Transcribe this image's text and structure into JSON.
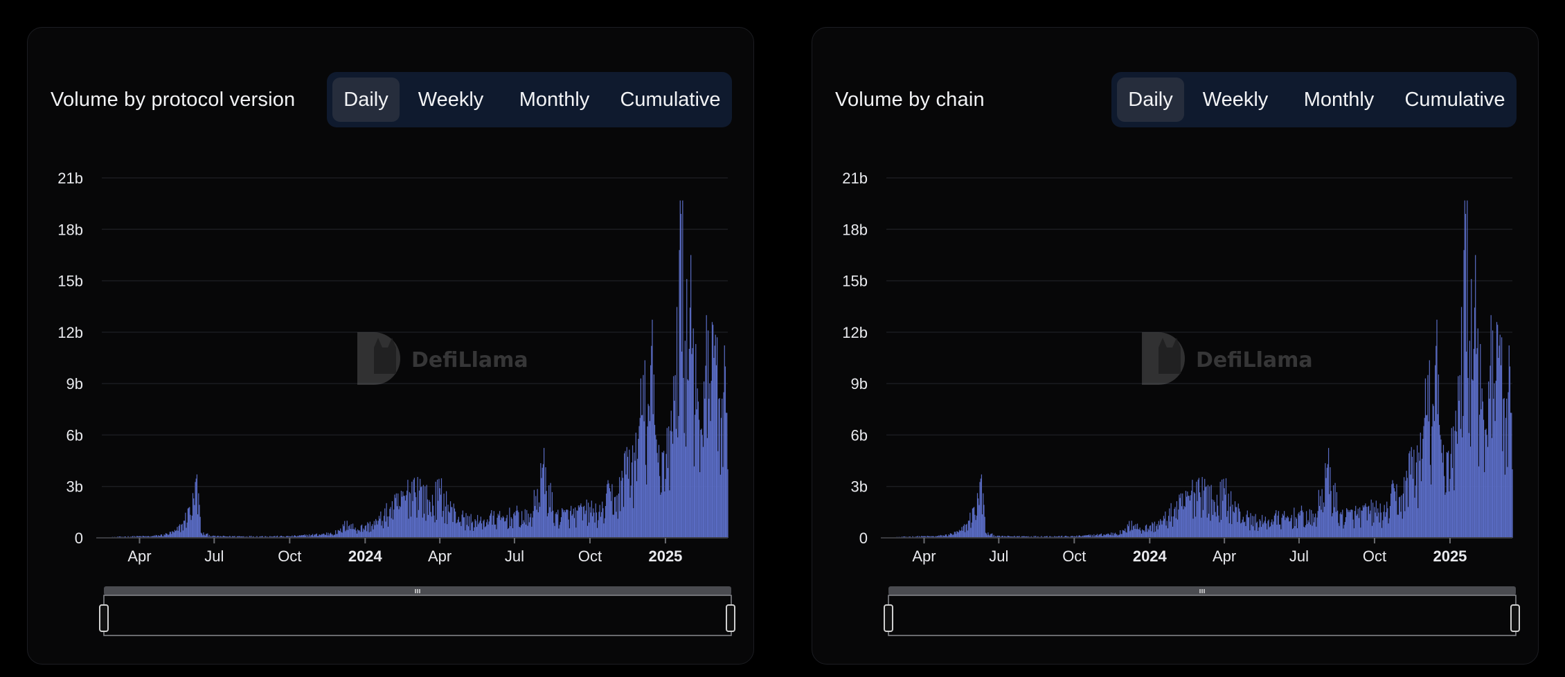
{
  "colors": {
    "background": "#000000",
    "panel": "#070708",
    "bars": "#5a6cc4",
    "toggle_bg": "#0f1a2e",
    "toggle_active": "#262d3c",
    "gridline": "#1b1c20"
  },
  "watermark": {
    "text": "DefiLlama",
    "icon": "llama-logo-icon"
  },
  "panels": [
    {
      "title": "Volume by protocol version",
      "period_buttons": [
        "Daily",
        "Weekly",
        "Monthly",
        "Cumulative"
      ],
      "selected_period": "Daily"
    },
    {
      "title": "Volume by chain",
      "period_buttons": [
        "Daily",
        "Weekly",
        "Monthly",
        "Cumulative"
      ],
      "selected_period": "Daily"
    }
  ],
  "chart_data": [
    {
      "type": "bar",
      "title": "Volume by protocol version",
      "x_range": [
        "2023-02-14",
        "2025-03-18"
      ],
      "ylim": [
        0,
        21
      ],
      "yticks": [
        "0",
        "3b",
        "6b",
        "9b",
        "12b",
        "15b",
        "18b",
        "21b"
      ],
      "ytick_values": [
        0,
        3,
        6,
        9,
        12,
        15,
        18,
        21
      ],
      "xticks": [
        {
          "date": "2023-04-01",
          "label": "Apr",
          "bold": false
        },
        {
          "date": "2023-07-01",
          "label": "Jul",
          "bold": false
        },
        {
          "date": "2023-10-01",
          "label": "Oct",
          "bold": false
        },
        {
          "date": "2024-01-01",
          "label": "2024",
          "bold": true
        },
        {
          "date": "2024-04-01",
          "label": "Apr",
          "bold": false
        },
        {
          "date": "2024-07-01",
          "label": "Jul",
          "bold": false
        },
        {
          "date": "2024-10-01",
          "label": "Oct",
          "bold": false
        },
        {
          "date": "2025-01-01",
          "label": "2025",
          "bold": true
        }
      ],
      "grid": true,
      "legend": "none",
      "series": [
        {
          "value_unit": "b",
          "points": [
            [
              "2023-02-14",
              0.0
            ],
            [
              "2023-03-01",
              0.05
            ],
            [
              "2023-03-15",
              0.08
            ],
            [
              "2023-04-01",
              0.1
            ],
            [
              "2023-04-15",
              0.1
            ],
            [
              "2023-05-01",
              0.2
            ],
            [
              "2023-05-15",
              0.4
            ],
            [
              "2023-05-25",
              1.0
            ],
            [
              "2023-06-01",
              1.8
            ],
            [
              "2023-06-06",
              2.3
            ],
            [
              "2023-06-10",
              3.7
            ],
            [
              "2023-06-12",
              2.6
            ],
            [
              "2023-06-15",
              0.3
            ],
            [
              "2023-07-01",
              0.1
            ],
            [
              "2023-08-01",
              0.1
            ],
            [
              "2023-09-01",
              0.1
            ],
            [
              "2023-10-01",
              0.1
            ],
            [
              "2023-11-01",
              0.2
            ],
            [
              "2023-11-20",
              0.3
            ],
            [
              "2023-12-01",
              0.4
            ],
            [
              "2023-12-10",
              1.0
            ],
            [
              "2023-12-20",
              0.6
            ],
            [
              "2024-01-01",
              0.7
            ],
            [
              "2024-01-15",
              1.0
            ],
            [
              "2024-02-01",
              1.8
            ],
            [
              "2024-02-15",
              2.4
            ],
            [
              "2024-03-01",
              3.5
            ],
            [
              "2024-03-10",
              3.0
            ],
            [
              "2024-03-20",
              2.1
            ],
            [
              "2024-04-01",
              2.9
            ],
            [
              "2024-04-15",
              1.8
            ],
            [
              "2024-05-01",
              1.2
            ],
            [
              "2024-05-20",
              1.0
            ],
            [
              "2024-06-01",
              1.3
            ],
            [
              "2024-06-15",
              1.2
            ],
            [
              "2024-07-01",
              1.5
            ],
            [
              "2024-07-20",
              1.2
            ],
            [
              "2024-08-05",
              4.3
            ],
            [
              "2024-08-20",
              1.4
            ],
            [
              "2024-09-01",
              1.5
            ],
            [
              "2024-09-15",
              1.6
            ],
            [
              "2024-10-01",
              1.8
            ],
            [
              "2024-10-15",
              1.5
            ],
            [
              "2024-10-25",
              2.9
            ],
            [
              "2024-11-01",
              2.4
            ],
            [
              "2024-11-10",
              3.5
            ],
            [
              "2024-11-15",
              5.3
            ],
            [
              "2024-11-25",
              4.5
            ],
            [
              "2024-12-01",
              7.0
            ],
            [
              "2024-12-05",
              9.5
            ],
            [
              "2024-12-10",
              6.5
            ],
            [
              "2024-12-15",
              11.2
            ],
            [
              "2024-12-20",
              6.0
            ],
            [
              "2024-12-28",
              5.0
            ],
            [
              "2025-01-05",
              6.5
            ],
            [
              "2025-01-12",
              8.0
            ],
            [
              "2025-01-20",
              18.9
            ],
            [
              "2025-01-25",
              11.5
            ],
            [
              "2025-02-01",
              16.5
            ],
            [
              "2025-02-08",
              7.5
            ],
            [
              "2025-02-15",
              6.0
            ],
            [
              "2025-02-22",
              12.1
            ],
            [
              "2025-03-01",
              10.5
            ],
            [
              "2025-03-05",
              11.7
            ],
            [
              "2025-03-10",
              7.0
            ],
            [
              "2025-03-15",
              10.0
            ],
            [
              "2025-03-18",
              4.0
            ]
          ]
        }
      ]
    },
    {
      "type": "bar",
      "title": "Volume by chain",
      "x_range": [
        "2023-02-14",
        "2025-03-18"
      ],
      "ylim": [
        0,
        21
      ],
      "yticks": [
        "0",
        "3b",
        "6b",
        "9b",
        "12b",
        "15b",
        "18b",
        "21b"
      ],
      "ytick_values": [
        0,
        3,
        6,
        9,
        12,
        15,
        18,
        21
      ],
      "xticks": [
        {
          "date": "2023-04-01",
          "label": "Apr",
          "bold": false
        },
        {
          "date": "2023-07-01",
          "label": "Jul",
          "bold": false
        },
        {
          "date": "2023-10-01",
          "label": "Oct",
          "bold": false
        },
        {
          "date": "2024-01-01",
          "label": "2024",
          "bold": true
        },
        {
          "date": "2024-04-01",
          "label": "Apr",
          "bold": false
        },
        {
          "date": "2024-07-01",
          "label": "Jul",
          "bold": false
        },
        {
          "date": "2024-10-01",
          "label": "Oct",
          "bold": false
        },
        {
          "date": "2025-01-01",
          "label": "2025",
          "bold": true
        }
      ],
      "grid": true,
      "legend": "none",
      "series": [
        {
          "value_unit": "b",
          "points": [
            [
              "2023-02-14",
              0.0
            ],
            [
              "2023-03-01",
              0.05
            ],
            [
              "2023-03-15",
              0.08
            ],
            [
              "2023-04-01",
              0.1
            ],
            [
              "2023-04-15",
              0.1
            ],
            [
              "2023-05-01",
              0.2
            ],
            [
              "2023-05-15",
              0.4
            ],
            [
              "2023-05-25",
              1.0
            ],
            [
              "2023-06-01",
              1.8
            ],
            [
              "2023-06-06",
              2.3
            ],
            [
              "2023-06-10",
              3.7
            ],
            [
              "2023-06-12",
              2.6
            ],
            [
              "2023-06-15",
              0.3
            ],
            [
              "2023-07-01",
              0.1
            ],
            [
              "2023-08-01",
              0.1
            ],
            [
              "2023-09-01",
              0.1
            ],
            [
              "2023-10-01",
              0.1
            ],
            [
              "2023-11-01",
              0.2
            ],
            [
              "2023-11-20",
              0.3
            ],
            [
              "2023-12-01",
              0.4
            ],
            [
              "2023-12-10",
              1.0
            ],
            [
              "2023-12-20",
              0.6
            ],
            [
              "2024-01-01",
              0.7
            ],
            [
              "2024-01-15",
              1.0
            ],
            [
              "2024-02-01",
              1.8
            ],
            [
              "2024-02-15",
              2.4
            ],
            [
              "2024-03-01",
              3.5
            ],
            [
              "2024-03-10",
              3.0
            ],
            [
              "2024-03-20",
              2.1
            ],
            [
              "2024-04-01",
              2.9
            ],
            [
              "2024-04-15",
              1.8
            ],
            [
              "2024-05-01",
              1.2
            ],
            [
              "2024-05-20",
              1.0
            ],
            [
              "2024-06-01",
              1.3
            ],
            [
              "2024-06-15",
              1.2
            ],
            [
              "2024-07-01",
              1.5
            ],
            [
              "2024-07-20",
              1.2
            ],
            [
              "2024-08-05",
              4.3
            ],
            [
              "2024-08-20",
              1.4
            ],
            [
              "2024-09-01",
              1.5
            ],
            [
              "2024-09-15",
              1.6
            ],
            [
              "2024-10-01",
              1.8
            ],
            [
              "2024-10-15",
              1.5
            ],
            [
              "2024-10-25",
              2.9
            ],
            [
              "2024-11-01",
              2.4
            ],
            [
              "2024-11-10",
              3.5
            ],
            [
              "2024-11-15",
              5.3
            ],
            [
              "2024-11-25",
              4.5
            ],
            [
              "2024-12-01",
              7.0
            ],
            [
              "2024-12-05",
              9.5
            ],
            [
              "2024-12-10",
              6.5
            ],
            [
              "2024-12-15",
              11.2
            ],
            [
              "2024-12-20",
              6.0
            ],
            [
              "2024-12-28",
              5.0
            ],
            [
              "2025-01-05",
              6.5
            ],
            [
              "2025-01-12",
              8.0
            ],
            [
              "2025-01-20",
              18.9
            ],
            [
              "2025-01-25",
              11.5
            ],
            [
              "2025-02-01",
              16.5
            ],
            [
              "2025-02-08",
              7.5
            ],
            [
              "2025-02-15",
              6.0
            ],
            [
              "2025-02-22",
              12.1
            ],
            [
              "2025-03-01",
              10.5
            ],
            [
              "2025-03-05",
              11.7
            ],
            [
              "2025-03-10",
              7.0
            ],
            [
              "2025-03-15",
              10.0
            ],
            [
              "2025-03-18",
              4.0
            ]
          ]
        }
      ]
    }
  ]
}
